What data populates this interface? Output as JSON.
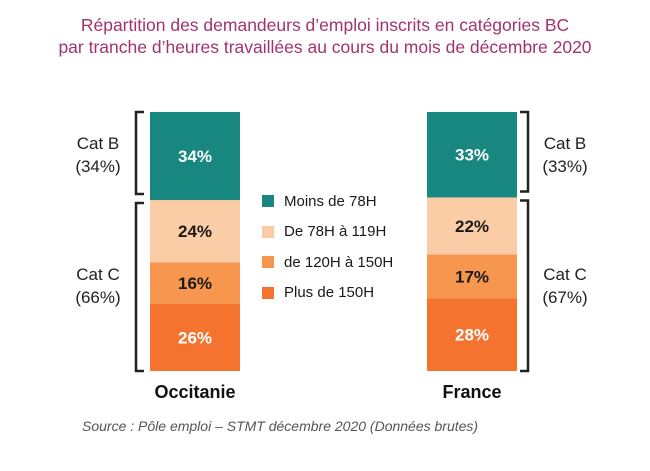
{
  "title_line1": "Répartition  des  demandeurs d’emploi inscrits en catégories BC",
  "title_line2": "par tranche d’heures travaillées au cours du mois de décembre 2020",
  "chart_data": {
    "type": "bar",
    "stacked": true,
    "normalized_percent": true,
    "categories": [
      "Occitanie",
      "France"
    ],
    "series": [
      {
        "name": "Plus de 150H",
        "values": [
          26,
          28
        ],
        "labels": [
          "26%",
          "28%"
        ],
        "color": "#f4742f"
      },
      {
        "name": "de 120H à 150H",
        "values": [
          16,
          17
        ],
        "labels": [
          "16%",
          "17%"
        ],
        "color": "#f7964f"
      },
      {
        "name": "De 78H à  119H",
        "values": [
          24,
          22
        ],
        "labels": [
          "24%",
          "22%"
        ],
        "color": "#fbcda6"
      },
      {
        "name": "Moins de 78H",
        "values": [
          34,
          33
        ],
        "labels": [
          "34%",
          "33%"
        ],
        "color": "#17877f"
      }
    ],
    "legend_order": [
      "Moins de 78H",
      "De 78H à  119H",
      "de 120H à 150H",
      "Plus de 150H"
    ],
    "groups": {
      "left": [
        {
          "name": "Cat B",
          "share": "(34%)"
        },
        {
          "name": "Cat C",
          "share": "(66%)"
        }
      ],
      "right": [
        {
          "name": "Cat B",
          "share": "(33%)"
        },
        {
          "name": "Cat C",
          "share": "(67%)"
        }
      ]
    },
    "legend_position": "center",
    "grid": false
  },
  "source": "Source : Pôle emploi – STMT décembre 2020  (Données brutes)"
}
